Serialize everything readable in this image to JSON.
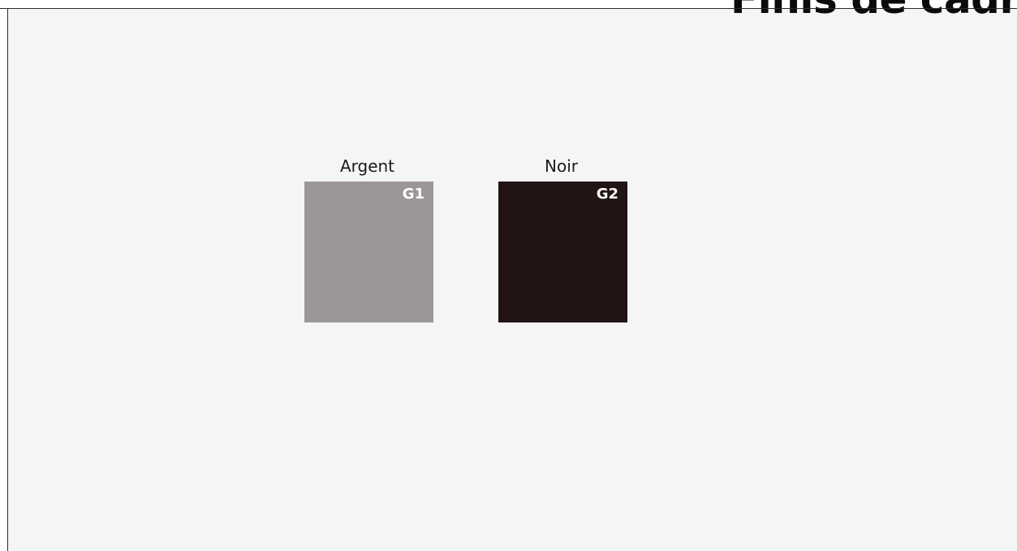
{
  "title": "Finis de cadre",
  "swatches": [
    {
      "label": "Argent",
      "code": "G1",
      "color": "#9a9796"
    },
    {
      "label": "Noir",
      "code": "G2",
      "color": "#221414"
    }
  ]
}
